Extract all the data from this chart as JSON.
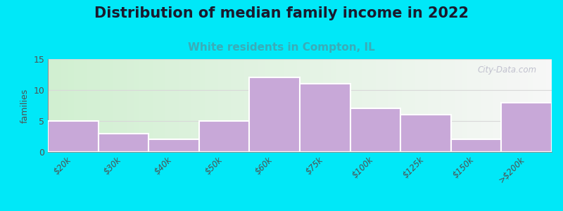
{
  "title": "Distribution of median family income in 2022",
  "subtitle": "White residents in Compton, IL",
  "categories": [
    "$20k",
    "$30k",
    "$40k",
    "$50k",
    "$60k",
    "$75k",
    "$100k",
    "$125k",
    "$150k",
    ">$200k"
  ],
  "values": [
    5,
    3,
    2,
    5,
    12,
    11,
    7,
    6,
    2,
    8
  ],
  "bar_color": "#c8a8d8",
  "bar_edge_color": "#ffffff",
  "ylabel": "families",
  "ylim": [
    0,
    15
  ],
  "yticks": [
    0,
    5,
    10,
    15
  ],
  "bg_outer": "#00e8f8",
  "title_fontsize": 15,
  "subtitle_fontsize": 11,
  "subtitle_color": "#3aacb8",
  "watermark": "City-Data.com",
  "grid_color": "#d8d8d8",
  "bg_left_color": "#d8f0d0",
  "bg_right_color": "#f8f8f8"
}
